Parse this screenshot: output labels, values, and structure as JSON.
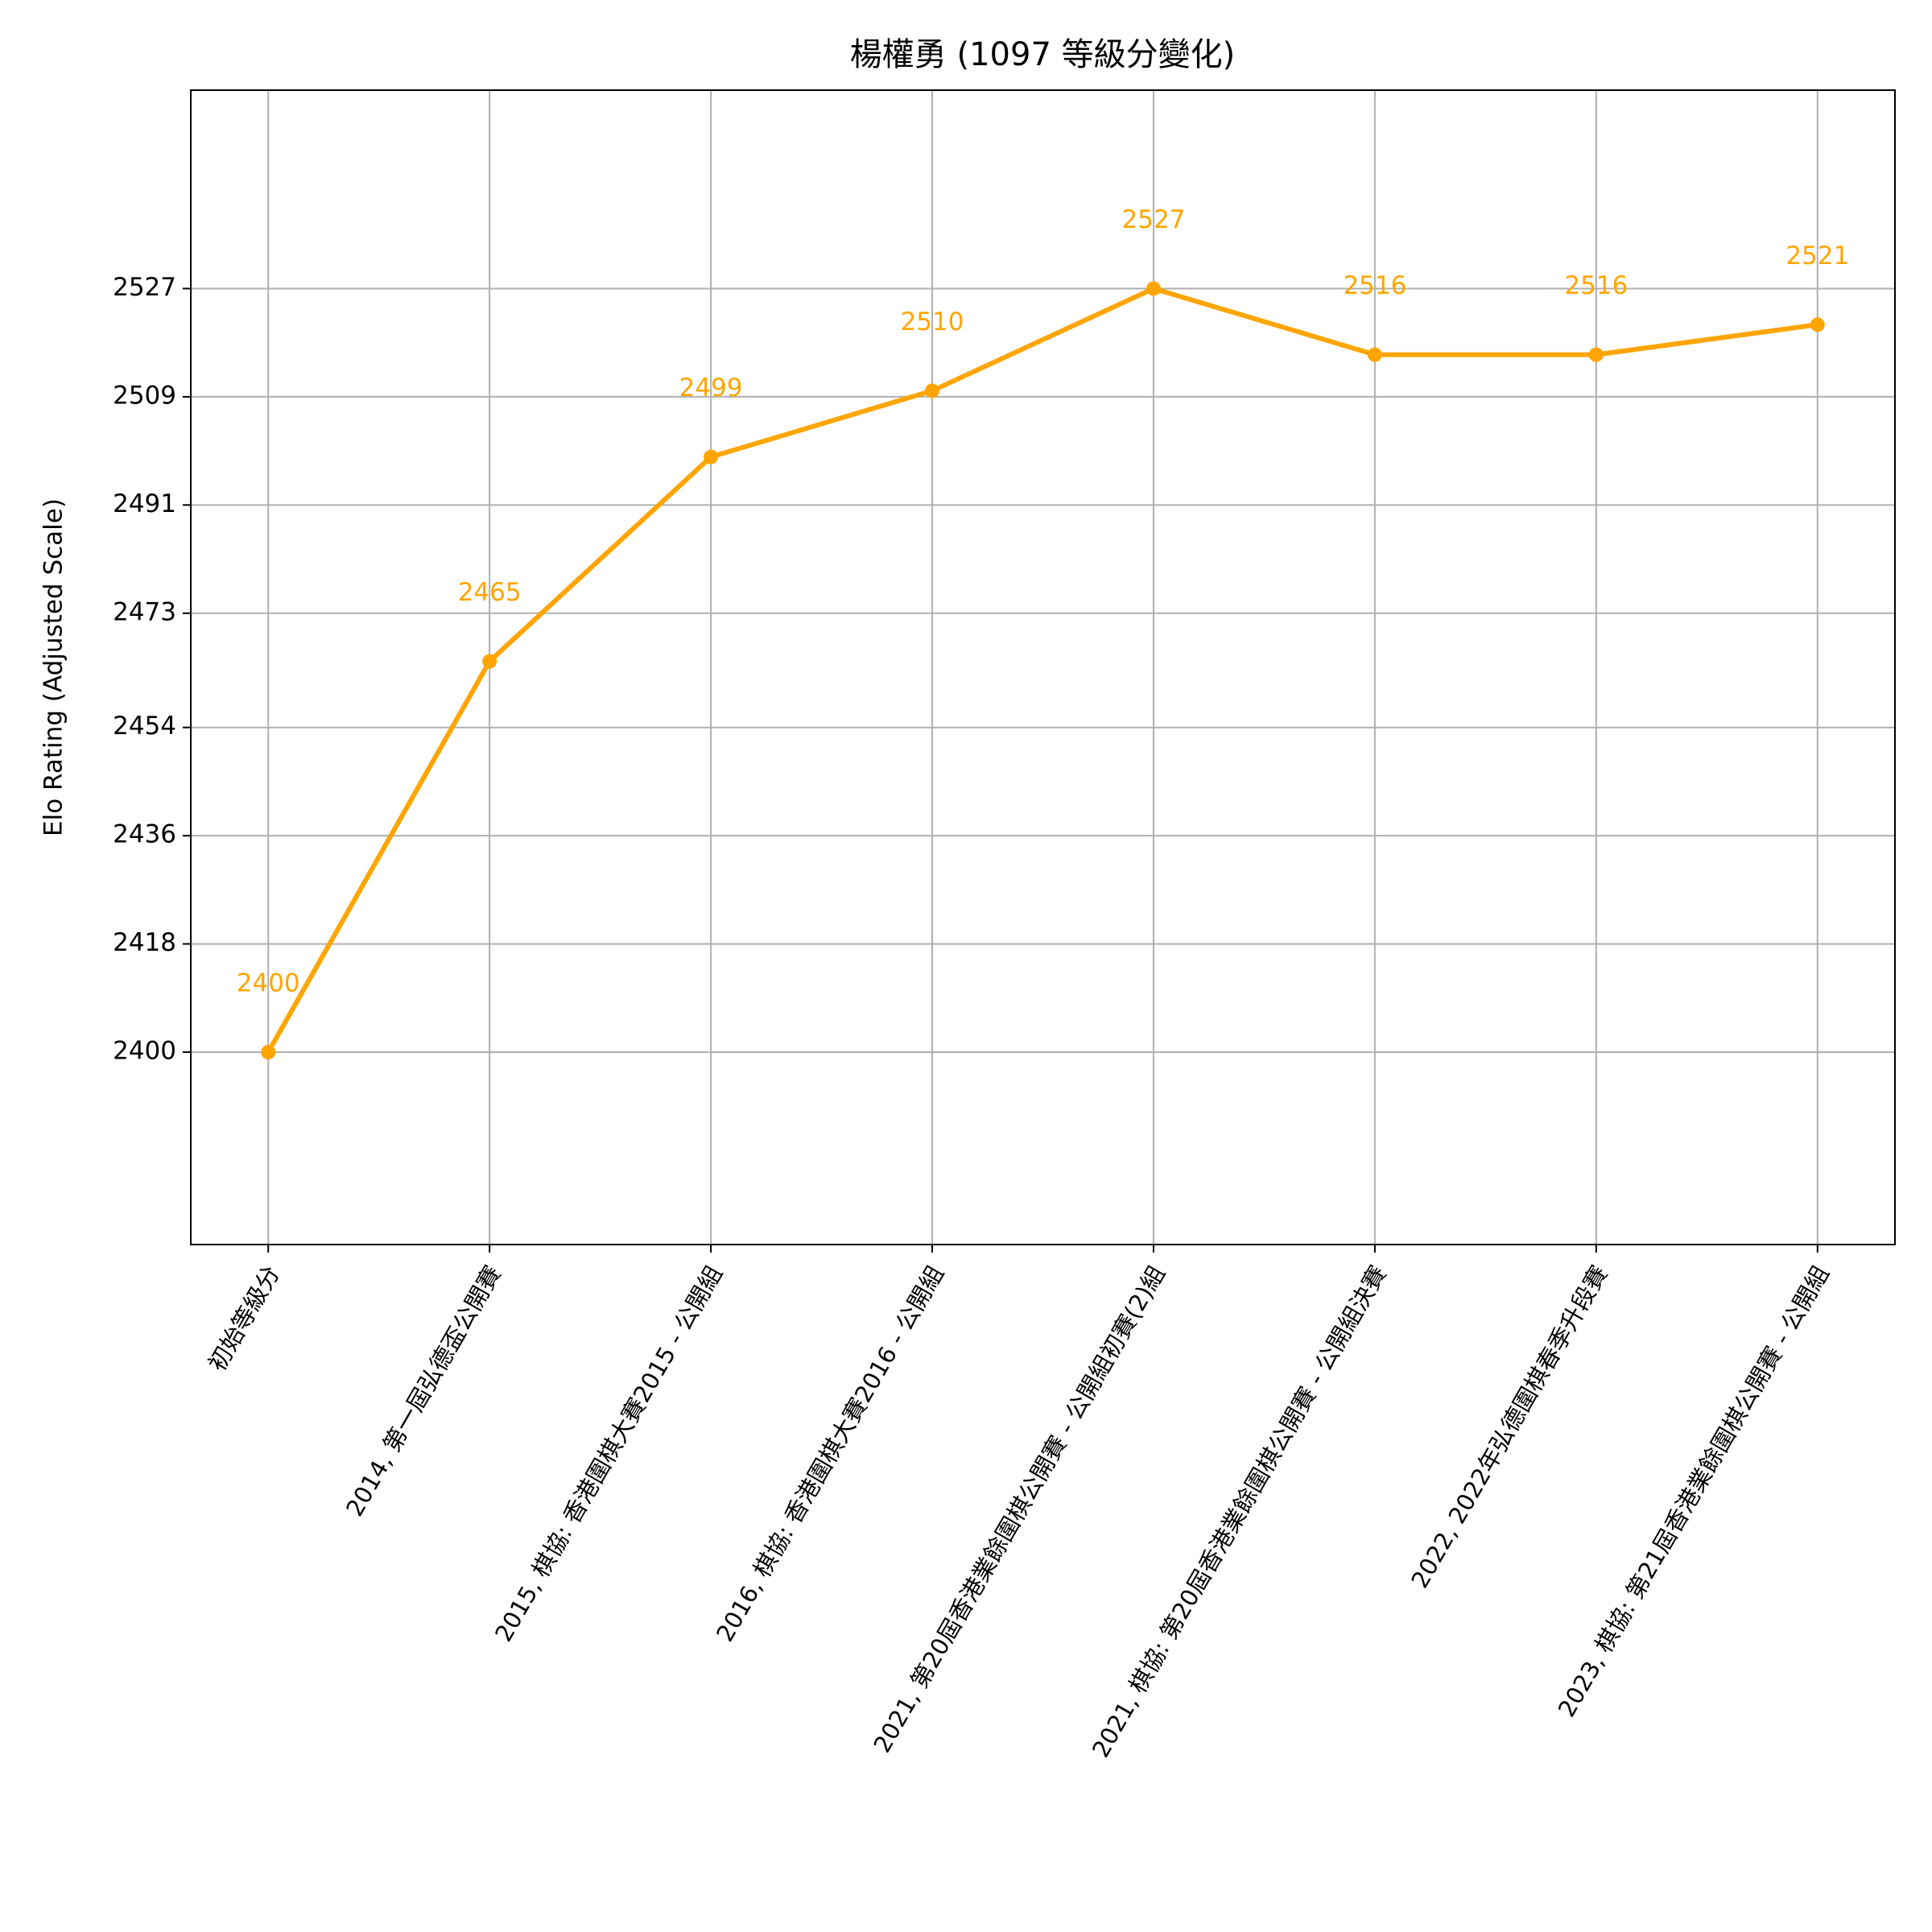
{
  "chart_data": {
    "type": "line",
    "title": "楊權勇 (1097 等級分變化)",
    "y_label": "Elo Rating (Adjusted Scale)",
    "categories": [
      "初始等級分",
      "2014, 第一屆弘德盃公開賽",
      "2015, 棋協: 香港圍棋大賽2015 - 公開組",
      "2016, 棋協: 香港圍棋大賽2016 - 公開組",
      "2021, 第20屆香港業餘圍棋公開賽 - 公開組初賽(2)組",
      "2021, 棋協: 第20屆香港業餘圍棋公開賽 - 公開組決賽",
      "2022, 2022年弘德圍棋春季升段賽",
      "2023, 棋協: 第21屆香港業餘圍棋公開賽 - 公開組"
    ],
    "series": [
      {
        "name": "Elo",
        "color": "#ffa500",
        "values": [
          2400,
          2465,
          2499,
          2510,
          2527,
          2516,
          2516,
          2521
        ]
      }
    ],
    "ylim": [
      2368,
      2560
    ],
    "yticks": [
      2400,
      2418,
      2436,
      2454,
      2473,
      2491,
      2509,
      2527
    ],
    "grid": true
  }
}
